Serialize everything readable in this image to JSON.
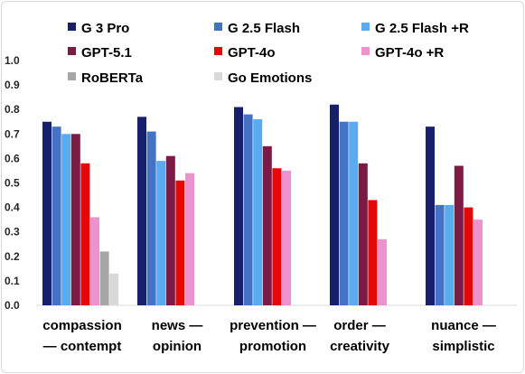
{
  "chart_data": {
    "type": "bar",
    "title": "",
    "xlabel": "",
    "ylabel": "",
    "ylim": [
      0,
      1.0
    ],
    "yticks": [
      "0.0",
      "0.1",
      "0.2",
      "0.3",
      "0.4",
      "0.5",
      "0.6",
      "0.7",
      "0.8",
      "0.9",
      "1.0"
    ],
    "grid": false,
    "legend_position": "top",
    "categories": [
      [
        "compassion",
        "— contempt"
      ],
      [
        "news —",
        "opinion"
      ],
      [
        "prevention —",
        "promotion"
      ],
      [
        "order —",
        "creativity"
      ],
      [
        "nuance —",
        "simplistic"
      ]
    ],
    "series": [
      {
        "name": "G 3 Pro",
        "color": "#17216b",
        "values": [
          0.75,
          0.77,
          0.81,
          0.82,
          0.73
        ]
      },
      {
        "name": "G 2.5 Flash",
        "color": "#4472c4",
        "values": [
          0.73,
          0.71,
          0.78,
          0.75,
          0.41
        ]
      },
      {
        "name": "G 2.5 Flash +R",
        "color": "#5aaaf0",
        "values": [
          0.7,
          0.59,
          0.76,
          0.75,
          0.41
        ]
      },
      {
        "name": "GPT-5.1",
        "color": "#7b1a45",
        "values": [
          0.7,
          0.61,
          0.65,
          0.58,
          0.57
        ]
      },
      {
        "name": "GPT-4o",
        "color": "#e50808",
        "values": [
          0.58,
          0.51,
          0.56,
          0.43,
          0.4
        ]
      },
      {
        "name": "GPT-4o +R",
        "color": "#ee91ce",
        "values": [
          0.36,
          0.54,
          0.55,
          0.27,
          0.35
        ]
      },
      {
        "name": "RoBERTa",
        "color": "#a6a6a6",
        "values": [
          0.22,
          null,
          null,
          null,
          null
        ]
      },
      {
        "name": "Go Emotions",
        "color": "#d9d9d9",
        "values": [
          0.13,
          null,
          null,
          null,
          null
        ]
      }
    ]
  }
}
